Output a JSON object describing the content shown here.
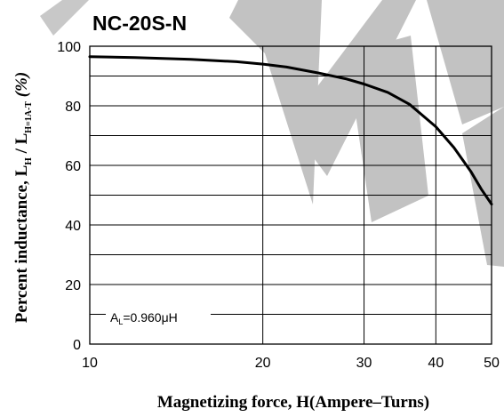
{
  "chart_data": {
    "type": "line",
    "title": "NC-20S-N",
    "xlabel": "Magnetizing force, H(Ampere–Turns)",
    "ylabel_main": "Percent inductance, L",
    "ylabel_sub1": "H",
    "ylabel_sep": " / L",
    "ylabel_sub2": "H=1A-T",
    "ylabel_unit": " (%)",
    "x_scale": "log",
    "xlim": [
      10,
      50
    ],
    "ylim": [
      0,
      100
    ],
    "x_ticks": [
      10,
      20,
      30,
      40,
      50
    ],
    "y_ticks": [
      0,
      20,
      40,
      60,
      80,
      100
    ],
    "x_gridlines": [
      10,
      20,
      30,
      40,
      50
    ],
    "y_gridlines": [
      0,
      10,
      20,
      30,
      40,
      50,
      60,
      70,
      80,
      90,
      100
    ],
    "grid": true,
    "annotation": {
      "main": "A",
      "sub": "L",
      "rest": "=0.960μH"
    },
    "series": [
      {
        "x": [
          10,
          12,
          15,
          18,
          20,
          22,
          25,
          28,
          30,
          33,
          36,
          40,
          43,
          46,
          48,
          50
        ],
        "y": [
          96.5,
          96.2,
          95.6,
          94.8,
          94,
          93,
          91,
          89,
          87.3,
          84.5,
          80.5,
          73,
          66,
          58,
          52,
          47
        ],
        "color": "#000000"
      }
    ]
  }
}
